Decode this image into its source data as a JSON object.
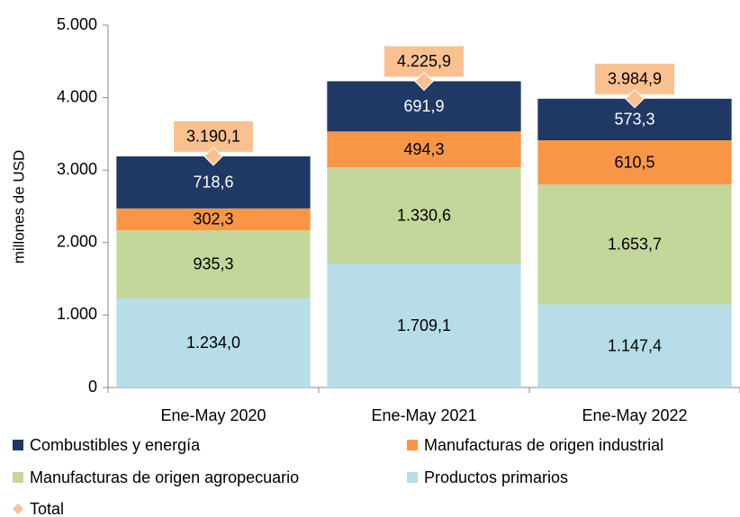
{
  "chart_data": {
    "type": "bar",
    "stacked": true,
    "y_label": "millones de  USD",
    "categories": [
      "Ene-May 2020",
      "Ene-May 2021",
      "Ene-May 2022"
    ],
    "series": [
      {
        "name": "Combustibles y energía",
        "color": "#1f3864",
        "values": [
          718.6,
          691.9,
          573.3
        ],
        "value_labels": [
          "718,6",
          "691,9",
          "573,3"
        ]
      },
      {
        "name": "Manufacturas de origen industrial",
        "color": "#f79646",
        "values": [
          302.3,
          494.3,
          610.5
        ],
        "value_labels": [
          "302,3",
          "494,3",
          "610,5"
        ]
      },
      {
        "name": "Manufacturas de origen agropecuario",
        "color": "#c4d79b",
        "values": [
          935.3,
          1330.6,
          1653.7
        ],
        "value_labels": [
          "935,3",
          "1.330,6",
          "1.653,7"
        ]
      },
      {
        "name": "Productos primarios",
        "color": "#b7dde8",
        "values": [
          1234.0,
          1709.1,
          1147.4
        ],
        "value_labels": [
          "1.234,0",
          "1.709,1",
          "1.147,4"
        ]
      }
    ],
    "total": {
      "name": "Total",
      "color": "#fac090",
      "values": [
        3190.1,
        4225.9,
        3984.9
      ],
      "value_labels": [
        "3.190,1",
        "4.225,9",
        "3.984,9"
      ]
    },
    "ylim": [
      0,
      5000
    ],
    "yticks": [
      0,
      {
        "value": 1000,
        "label": "1.000"
      },
      {
        "value": 2000,
        "label": "2.000"
      },
      {
        "value": 3000,
        "label": "3.000"
      },
      {
        "value": 4000,
        "label": "4.000"
      },
      {
        "value": 5000,
        "label": "5.000"
      }
    ],
    "grid": false
  }
}
